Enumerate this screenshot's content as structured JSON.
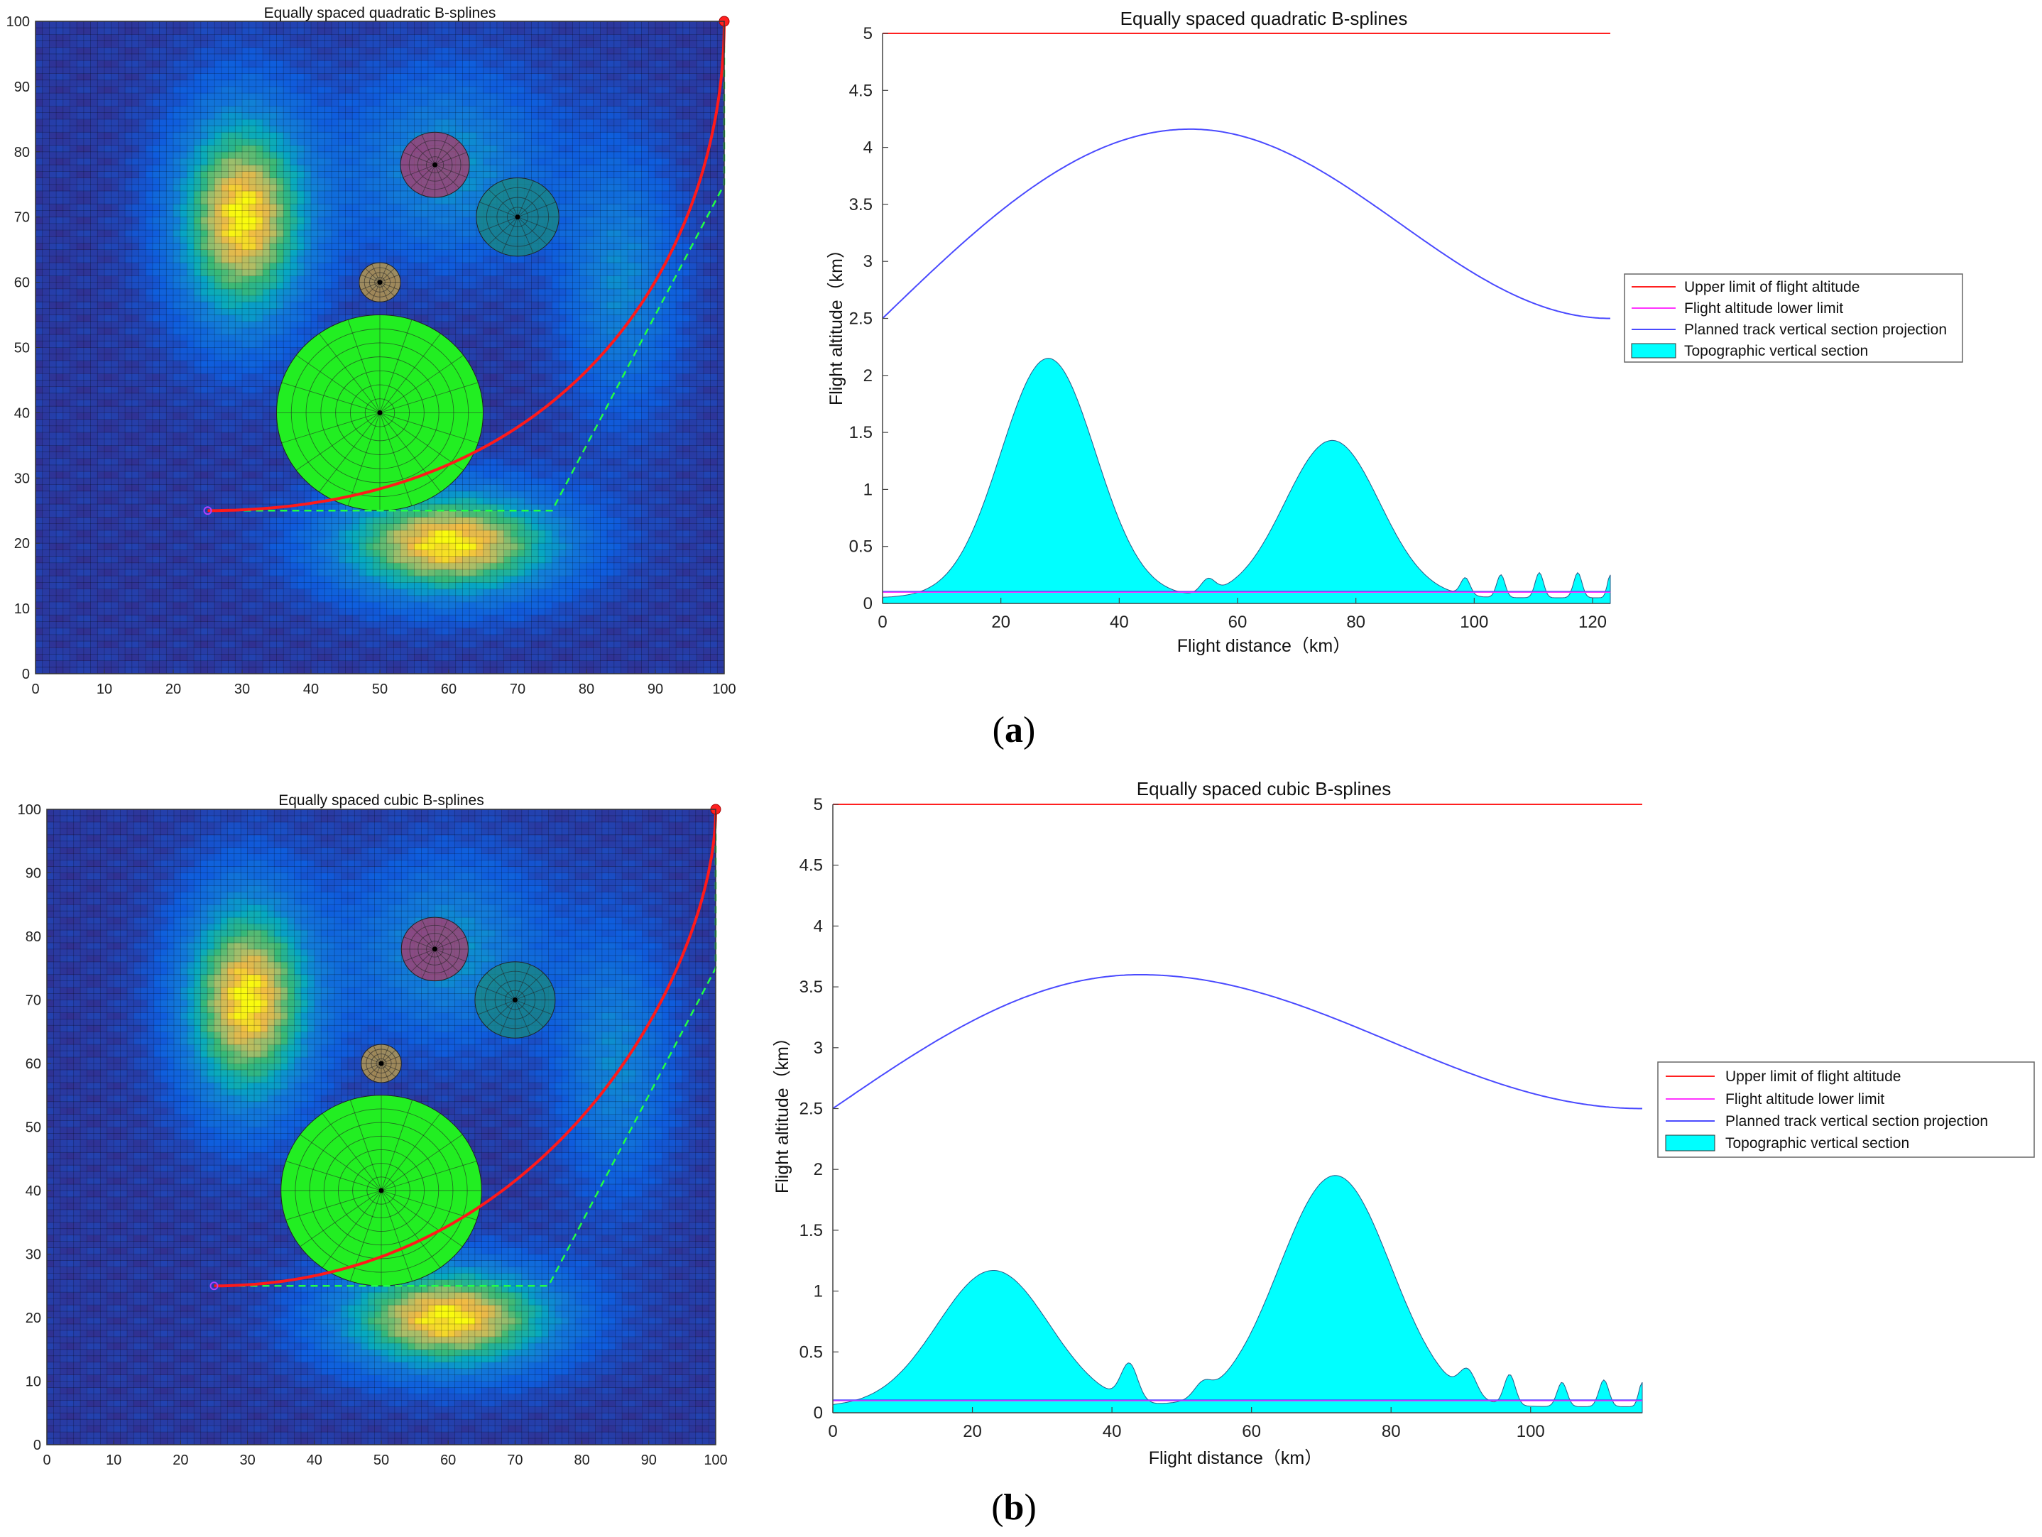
{
  "figure": {
    "panel_a_label": "a",
    "panel_b_label": "b"
  },
  "colors": {
    "upper": "#ff2020",
    "lower": "#ff33ff",
    "track": "#4a4aff",
    "terrain": "#00ffff",
    "route": "#ff1a1a",
    "dashed": "#22ff44",
    "obstacle_big": "#22ee22"
  },
  "chart_data": [
    {
      "type": "heatmap",
      "id": "map_a",
      "title": "Equally spaced quadratic B-splines",
      "xlim": [
        0,
        100
      ],
      "ylim": [
        0,
        100
      ],
      "xticks": [
        0,
        10,
        20,
        30,
        40,
        50,
        60,
        70,
        80,
        90,
        100
      ],
      "yticks": [
        0,
        10,
        20,
        30,
        40,
        50,
        60,
        70,
        80,
        90,
        100
      ],
      "peaks": [
        {
          "x": 30,
          "y": 70,
          "sx": 7,
          "sy": 12,
          "h": 1.0
        },
        {
          "x": 60,
          "y": 20,
          "sx": 12,
          "sy": 6,
          "h": 1.0
        },
        {
          "x": 60,
          "y": 78,
          "sx": 10,
          "sy": 10,
          "h": 0.45
        },
        {
          "x": 85,
          "y": 60,
          "sx": 6,
          "sy": 14,
          "h": 0.4
        }
      ],
      "obstacles": [
        {
          "x": 50,
          "y": 40,
          "r": 15,
          "color": "#22ee22"
        },
        {
          "x": 70,
          "y": 70,
          "r": 6,
          "color": "#1a8a80"
        },
        {
          "x": 58,
          "y": 78,
          "r": 5,
          "color": "#b03a6a"
        },
        {
          "x": 50,
          "y": 60,
          "r": 3,
          "color": "#c8a040"
        }
      ],
      "route": {
        "start": [
          25,
          25
        ],
        "end": [
          100,
          100
        ],
        "control": [
          [
            25,
            25
          ],
          [
            75,
            25
          ],
          [
            100,
            75
          ],
          [
            100,
            100
          ]
        ],
        "degree": 2
      }
    },
    {
      "type": "area",
      "id": "profile_a",
      "title": "Equally spaced quadratic B-splines",
      "xlabel": "Flight distance（km）",
      "ylabel": "Flight altitude（km）",
      "xlim": [
        0,
        123
      ],
      "ylim": [
        0,
        5
      ],
      "xticks": [
        0,
        20,
        40,
        60,
        80,
        100,
        120
      ],
      "yticks": [
        0,
        0.5,
        1,
        1.5,
        2,
        2.5,
        3,
        3.5,
        4,
        4.5,
        5
      ],
      "upper_limit": 5,
      "lower_limit": 0.1,
      "track": {
        "start": 2.5,
        "peak_x": 52,
        "peak_y": 4.16,
        "end": 2.5
      },
      "terrain_peaks": [
        {
          "x": 28,
          "h": 2.1,
          "s": 8
        },
        {
          "x": 76,
          "h": 1.38,
          "s": 8
        },
        {
          "x": 55,
          "h": 0.12,
          "s": 1.2
        },
        {
          "x": 98.5,
          "h": 0.15,
          "s": 0.8
        },
        {
          "x": 104.5,
          "h": 0.2,
          "s": 0.7
        },
        {
          "x": 111,
          "h": 0.22,
          "s": 0.7
        },
        {
          "x": 117.5,
          "h": 0.22,
          "s": 0.7
        },
        {
          "x": 123,
          "h": 0.2,
          "s": 0.5
        }
      ],
      "legend": [
        "Upper limit of flight altitude",
        "Flight altitude lower limit",
        "Planned track vertical section projection",
        "Topographic vertical section"
      ]
    },
    {
      "type": "heatmap",
      "id": "map_b",
      "title": "Equally spaced cubic B-splines",
      "xlim": [
        0,
        100
      ],
      "ylim": [
        0,
        100
      ],
      "xticks": [
        0,
        10,
        20,
        30,
        40,
        50,
        60,
        70,
        80,
        90,
        100
      ],
      "yticks": [
        0,
        10,
        20,
        30,
        40,
        50,
        60,
        70,
        80,
        90,
        100
      ],
      "peaks": [
        {
          "x": 30,
          "y": 70,
          "sx": 7,
          "sy": 12,
          "h": 1.0
        },
        {
          "x": 60,
          "y": 20,
          "sx": 12,
          "sy": 6,
          "h": 1.0
        },
        {
          "x": 60,
          "y": 78,
          "sx": 10,
          "sy": 10,
          "h": 0.45
        },
        {
          "x": 85,
          "y": 60,
          "sx": 6,
          "sy": 14,
          "h": 0.4
        }
      ],
      "obstacles": [
        {
          "x": 50,
          "y": 40,
          "r": 15,
          "color": "#22ee22"
        },
        {
          "x": 70,
          "y": 70,
          "r": 6,
          "color": "#1a8a80"
        },
        {
          "x": 58,
          "y": 78,
          "r": 5,
          "color": "#b03a6a"
        },
        {
          "x": 50,
          "y": 60,
          "r": 3,
          "color": "#c8a040"
        }
      ],
      "route": {
        "start": [
          25,
          25
        ],
        "end": [
          100,
          100
        ],
        "control": [
          [
            25,
            25
          ],
          [
            75,
            25
          ],
          [
            100,
            75
          ],
          [
            100,
            100
          ]
        ],
        "degree": 3
      }
    },
    {
      "type": "area",
      "id": "profile_b",
      "title": "Equally spaced cubic B-splines",
      "xlabel": "Flight distance（km）",
      "ylabel": "Flight altitude（km）",
      "xlim": [
        0,
        116
      ],
      "ylim": [
        0,
        5
      ],
      "xticks": [
        0,
        20,
        40,
        60,
        80,
        100
      ],
      "yticks": [
        0,
        0.5,
        1,
        1.5,
        2,
        2.5,
        3,
        3.5,
        4,
        4.5,
        5
      ],
      "upper_limit": 5,
      "lower_limit": 0.1,
      "track": {
        "start": 2.5,
        "peak_x": 44,
        "peak_y": 3.6,
        "end": 2.5
      },
      "terrain_peaks": [
        {
          "x": 23,
          "h": 1.12,
          "s": 8
        },
        {
          "x": 72,
          "h": 1.9,
          "s": 8
        },
        {
          "x": 42.5,
          "h": 0.3,
          "s": 1.2
        },
        {
          "x": 53,
          "h": 0.1,
          "s": 1.2
        },
        {
          "x": 91,
          "h": 0.2,
          "s": 1.2
        },
        {
          "x": 97,
          "h": 0.25,
          "s": 0.8
        },
        {
          "x": 104.5,
          "h": 0.2,
          "s": 0.7
        },
        {
          "x": 110.5,
          "h": 0.22,
          "s": 0.7
        },
        {
          "x": 116,
          "h": 0.2,
          "s": 0.5
        }
      ],
      "legend": [
        "Upper limit of flight altitude",
        "Flight altitude lower limit",
        "Planned track vertical section projection",
        "Topographic vertical section"
      ]
    }
  ]
}
